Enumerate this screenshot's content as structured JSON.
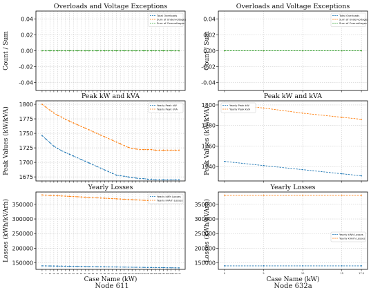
{
  "captions": {
    "left": "Node 611",
    "right": "Node 632a"
  },
  "colors": {
    "blue": "#1f77b4",
    "orange": "#ff7f0e",
    "green": "#2ca02c",
    "grid": "#b0b0b0"
  },
  "chart_data": [
    {
      "id": "n611-exc",
      "type": "line",
      "title": "Overloads and Voltage Exceptions",
      "xlabel": "",
      "ylabel": "Count / Sum",
      "ylim": [
        -0.05,
        0.05
      ],
      "yticks": [
        "0.04",
        "0.02",
        "0.00",
        "-0.02",
        "-0.04"
      ],
      "ytick_values": [
        0.04,
        0.02,
        0.0,
        -0.02,
        -0.04
      ],
      "x": [
        0,
        5,
        10,
        15,
        20,
        25,
        30,
        35,
        40,
        45,
        50,
        55,
        60,
        65,
        70,
        75,
        80,
        85,
        90,
        95,
        100,
        105,
        110,
        115,
        120,
        125,
        130,
        135,
        140,
        145,
        150,
        155,
        160,
        165,
        170,
        175
      ],
      "legend": "top-right",
      "series": [
        {
          "name": "Total Overloads",
          "values": [
            0,
            0,
            0,
            0,
            0,
            0,
            0,
            0,
            0,
            0,
            0,
            0,
            0,
            0,
            0,
            0,
            0,
            0,
            0,
            0,
            0,
            0,
            0,
            0,
            0,
            0,
            0,
            0,
            0,
            0,
            0,
            0,
            0,
            0,
            0,
            0
          ]
        },
        {
          "name": "Sum of Undervoltages",
          "values": [
            0,
            0,
            0,
            0,
            0,
            0,
            0,
            0,
            0,
            0,
            0,
            0,
            0,
            0,
            0,
            0,
            0,
            0,
            0,
            0,
            0,
            0,
            0,
            0,
            0,
            0,
            0,
            0,
            0,
            0,
            0,
            0,
            0,
            0,
            0,
            0
          ]
        },
        {
          "name": "Sum of Overvoltages",
          "values": [
            0,
            0,
            0,
            0,
            0,
            0,
            0,
            0,
            0,
            0,
            0,
            0,
            0,
            0,
            0,
            0,
            0,
            0,
            0,
            0,
            0,
            0,
            0,
            0,
            0,
            0,
            0,
            0,
            0,
            0,
            0,
            0,
            0,
            0,
            0,
            0
          ]
        }
      ]
    },
    {
      "id": "n632-exc",
      "type": "line",
      "title": "Overloads and Voltage Exceptions",
      "xlabel": "",
      "ylabel": "Count / Sum",
      "ylim": [
        -0.05,
        0.05
      ],
      "yticks": [
        "0.04",
        "0.02",
        "0.00",
        "-0.02",
        "-0.04"
      ],
      "ytick_values": [
        0.04,
        0.02,
        0.0,
        -0.02,
        -0.04
      ],
      "x": [
        0,
        5,
        10,
        15,
        17.5
      ],
      "legend": "top-right",
      "series": [
        {
          "name": "Total Overloads",
          "values": [
            0,
            0,
            0,
            0,
            0
          ]
        },
        {
          "name": "Sum of Undervoltages",
          "values": [
            0,
            0,
            0,
            0,
            0
          ]
        },
        {
          "name": "Sum of Overvoltages",
          "values": [
            0,
            0,
            0,
            0,
            0
          ]
        }
      ]
    },
    {
      "id": "n611-peak",
      "type": "line",
      "title": "Peak kW and kVA",
      "xlabel": "",
      "ylabel": "Peak Values (kW/kVA)",
      "ylim": [
        1668,
        1806
      ],
      "yticks": [
        "1800",
        "1775",
        "1750",
        "1725",
        "1700",
        "1675"
      ],
      "ytick_values": [
        1800,
        1775,
        1750,
        1725,
        1700,
        1675
      ],
      "x": [
        0,
        5,
        10,
        15,
        20,
        25,
        30,
        35,
        40,
        45,
        50,
        55,
        60,
        65,
        70,
        75,
        80,
        85,
        90,
        95,
        100,
        105,
        110,
        115,
        120,
        125,
        130,
        135,
        140,
        145,
        150,
        155,
        160,
        165,
        170,
        175
      ],
      "legend": "top-right",
      "series": [
        {
          "name": "Yearly Peak kW",
          "values": [
            1746,
            1740,
            1734,
            1728,
            1724,
            1720,
            1717,
            1714,
            1711,
            1708,
            1705,
            1702,
            1699,
            1696,
            1693,
            1690,
            1687,
            1684,
            1681,
            1678,
            1677,
            1676,
            1675,
            1674,
            1673,
            1672,
            1672,
            1671,
            1671,
            1670,
            1670,
            1670,
            1670,
            1670,
            1670,
            1670
          ]
        },
        {
          "name": "Yearly Peak kVA",
          "values": [
            1800,
            1795,
            1790,
            1785,
            1781,
            1778,
            1774,
            1771,
            1768,
            1765,
            1762,
            1759,
            1756,
            1753,
            1750,
            1747,
            1744,
            1741,
            1738,
            1735,
            1732,
            1729,
            1726,
            1724,
            1723,
            1722,
            1722,
            1722,
            1722,
            1721,
            1721,
            1721,
            1721,
            1721,
            1721,
            1721
          ]
        }
      ]
    },
    {
      "id": "n632-peak",
      "type": "line",
      "title": "Peak kW and kVA",
      "xlabel": "",
      "ylabel": "Peak Values (kW/kVA)",
      "ylim": [
        1726,
        1804
      ],
      "yticks": [
        "1800",
        "1780",
        "1760",
        "1740"
      ],
      "ytick_values": [
        1800,
        1780,
        1760,
        1740
      ],
      "x": [
        0,
        5,
        10,
        15,
        17.5
      ],
      "legend": "top-left",
      "series": [
        {
          "name": "Yearly Peak kW",
          "values": [
            1745,
            1741,
            1737,
            1733,
            1731
          ]
        },
        {
          "name": "Yearly Peak kVA",
          "values": [
            1801,
            1797,
            1792,
            1788,
            1786
          ]
        }
      ]
    },
    {
      "id": "n611-loss",
      "type": "line",
      "title": "Yearly Losses",
      "xlabel": "Case Name (kW)",
      "ylabel": "Losses (kWh/kVArh)",
      "ylim": [
        128000,
        392000
      ],
      "yticks": [
        "350000",
        "300000",
        "250000",
        "200000",
        "150000"
      ],
      "ytick_values": [
        350000,
        300000,
        250000,
        200000,
        150000
      ],
      "x": [
        0,
        5,
        10,
        15,
        20,
        25,
        30,
        35,
        40,
        45,
        50,
        55,
        60,
        65,
        70,
        75,
        80,
        85,
        90,
        95,
        100,
        105,
        110,
        115,
        120,
        125,
        130,
        135,
        140,
        145,
        150,
        155,
        160,
        165,
        170,
        175
      ],
      "xtick_labels": [
        "0",
        "5",
        "10",
        "15",
        "20",
        "25",
        "30",
        "35",
        "40",
        "45",
        "50",
        "55",
        "60",
        "65",
        "70",
        "75",
        "80",
        "85",
        "90",
        "95",
        "100",
        "105",
        "110",
        "115",
        "120",
        "125",
        "130",
        "135",
        "140",
        "145",
        "150",
        "155",
        "160",
        "165",
        "170",
        "175"
      ],
      "legend": "top-right",
      "series": [
        {
          "name": "Yearly kWh Losses",
          "values": [
            140000,
            139800,
            139600,
            139400,
            139200,
            139000,
            138800,
            138600,
            138400,
            138200,
            138000,
            137800,
            137600,
            137400,
            137200,
            137000,
            136800,
            136600,
            136400,
            136200,
            136000,
            135800,
            135600,
            135400,
            135200,
            135000,
            134800,
            134600,
            134400,
            134200,
            134000,
            133800,
            133600,
            133400,
            133200,
            133000
          ]
        },
        {
          "name": "Yearly kVArh Losses",
          "values": [
            382000,
            381300,
            380600,
            379900,
            379200,
            378500,
            377800,
            377100,
            376400,
            375700,
            375000,
            374300,
            373600,
            372900,
            372200,
            371500,
            370800,
            370100,
            369400,
            368700,
            368000,
            367300,
            366600,
            365900,
            365200,
            364500,
            363800,
            363100,
            362400,
            361700,
            361000,
            360300,
            359600,
            358900,
            358200,
            357500
          ]
        }
      ]
    },
    {
      "id": "n632-loss",
      "type": "line",
      "title": "Yearly Losses",
      "xlabel": "Case Name (kW)",
      "ylabel": "Losses (kWh/kVArh)",
      "ylim": [
        128000,
        392000
      ],
      "yticks": [
        "350000",
        "300000",
        "250000",
        "200000",
        "150000"
      ],
      "ytick_values": [
        350000,
        300000,
        250000,
        200000,
        150000
      ],
      "x": [
        0,
        5,
        10,
        15,
        17.5
      ],
      "xtick_labels": [
        "0",
        "5",
        "10",
        "15",
        "17.5"
      ],
      "legend": "middle-right",
      "series": [
        {
          "name": "Yearly kWh Losses",
          "values": [
            140000,
            140000,
            140000,
            140000,
            140000
          ]
        },
        {
          "name": "Yearly kVArh Losses",
          "values": [
            381000,
            381000,
            381000,
            381000,
            381000
          ]
        }
      ]
    }
  ]
}
